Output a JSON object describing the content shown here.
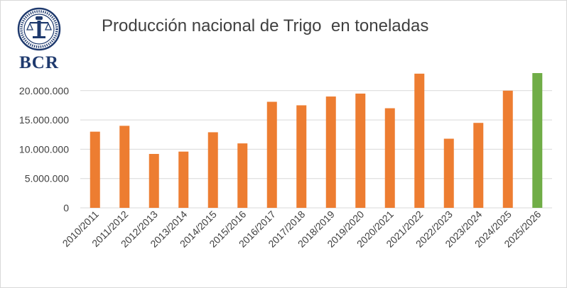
{
  "logo": {
    "name": "bcr-logo",
    "text": "BCR",
    "seal_text": "BOLSA DE COMERCIO DE ROSARIO",
    "color": "#1f3a6e"
  },
  "chart_data": {
    "type": "bar",
    "title": "Producción nacional de Trigo  en toneladas",
    "categories": [
      "2010/2011",
      "2011/2012",
      "2012/2013",
      "2013/2014",
      "2014/2015",
      "2015/2016",
      "2016/2017",
      "2017/2018",
      "2018/2019",
      "2019/2020",
      "2020/2021",
      "2021/2022",
      "2022/2023",
      "2023/2024",
      "2024/2025",
      "2025/2026"
    ],
    "values": [
      13000000,
      14000000,
      9200000,
      9600000,
      12900000,
      11000000,
      18100000,
      17500000,
      19000000,
      19500000,
      17000000,
      22900000,
      11800000,
      14500000,
      20000000,
      23000000
    ],
    "colors": [
      "#ed7d31",
      "#ed7d31",
      "#ed7d31",
      "#ed7d31",
      "#ed7d31",
      "#ed7d31",
      "#ed7d31",
      "#ed7d31",
      "#ed7d31",
      "#ed7d31",
      "#ed7d31",
      "#ed7d31",
      "#ed7d31",
      "#ed7d31",
      "#ed7d31",
      "#70ad47"
    ],
    "xlabel": "",
    "ylabel": "",
    "ylim": [
      0,
      25000000
    ],
    "yticks": [
      0,
      5000000,
      10000000,
      15000000,
      20000000
    ],
    "ytick_labels": [
      "0",
      "5.000.000",
      "10.000.000",
      "15.000.000",
      "20.000.000"
    ],
    "grid": true,
    "gridline_color": "#d9d9d9"
  }
}
